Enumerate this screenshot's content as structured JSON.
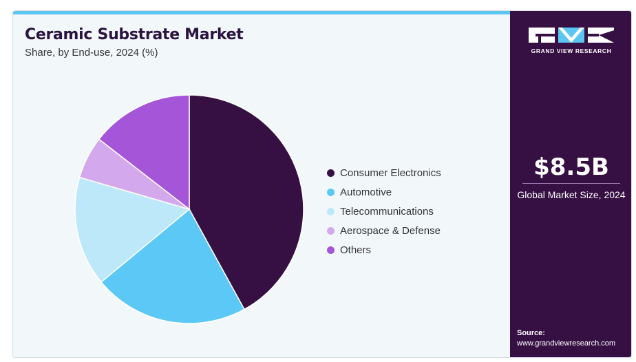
{
  "header": {
    "title": "Ceramic Substrate Market",
    "subtitle": "Share, by End-use, 2024 (%)"
  },
  "chart_data": {
    "type": "pie",
    "title": "Ceramic Substrate Market",
    "subtitle": "Share, by End-use, 2024 (%)",
    "legend_position": "right",
    "categories": [
      "Consumer Electronics",
      "Automotive",
      "Telecommunications",
      "Aerospace & Defense",
      "Others"
    ],
    "values": [
      42,
      22,
      15.5,
      6,
      14.5
    ],
    "colors": [
      "#361043",
      "#5bc8f5",
      "#bde8f9",
      "#d4a8ec",
      "#a455d8"
    ]
  },
  "sidebar": {
    "logo_text": "GRAND VIEW RESEARCH",
    "market_size_value": "$8.5B",
    "market_size_label": "Global Market Size, 2024",
    "source_label": "Source:",
    "source_url": "www.grandviewresearch.com"
  },
  "colors": {
    "accent": "#5bc6f2",
    "sidebar_bg": "#361043",
    "panel_bg": "#f2f7fa",
    "title": "#2b1440"
  }
}
